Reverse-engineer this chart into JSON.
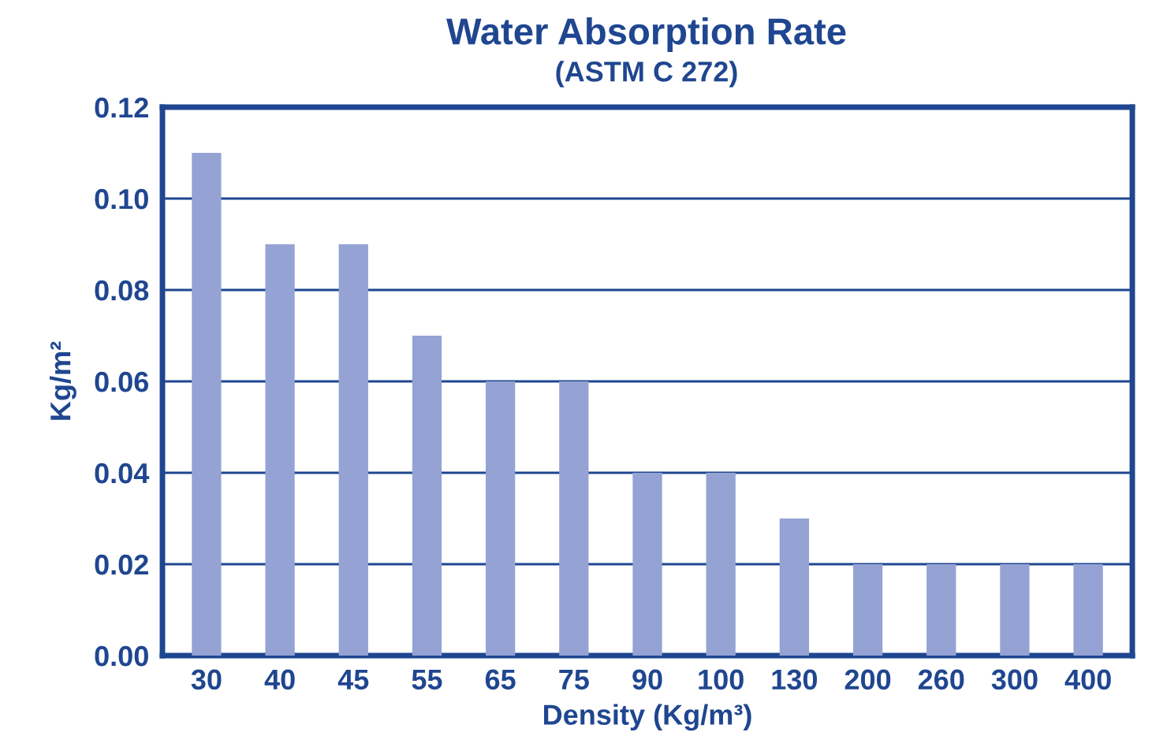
{
  "chart_data": {
    "type": "bar",
    "title": "Water Absorption Rate",
    "subtitle": "(ASTM C 272)",
    "xlabel": "Density (Kg/m³)",
    "ylabel": "Kg/m²",
    "categories": [
      "30",
      "40",
      "45",
      "55",
      "65",
      "75",
      "90",
      "100",
      "130",
      "200",
      "260",
      "300",
      "400"
    ],
    "values": [
      0.11,
      0.09,
      0.09,
      0.07,
      0.06,
      0.06,
      0.04,
      0.04,
      0.03,
      0.02,
      0.02,
      0.02,
      0.02
    ],
    "color": "#94a3d4",
    "ylim": [
      0,
      0.12
    ],
    "yticks": [
      {
        "value": 0,
        "label": "0.00"
      },
      {
        "value": 0.02,
        "label": "0.02"
      },
      {
        "value": 0.04,
        "label": "0.04"
      },
      {
        "value": 0.06,
        "label": "0.06"
      },
      {
        "value": 0.08,
        "label": "0.08"
      },
      {
        "value": 0.1,
        "label": "0.10"
      },
      {
        "value": 0.12,
        "label": "0.12"
      }
    ],
    "grid": "y"
  }
}
